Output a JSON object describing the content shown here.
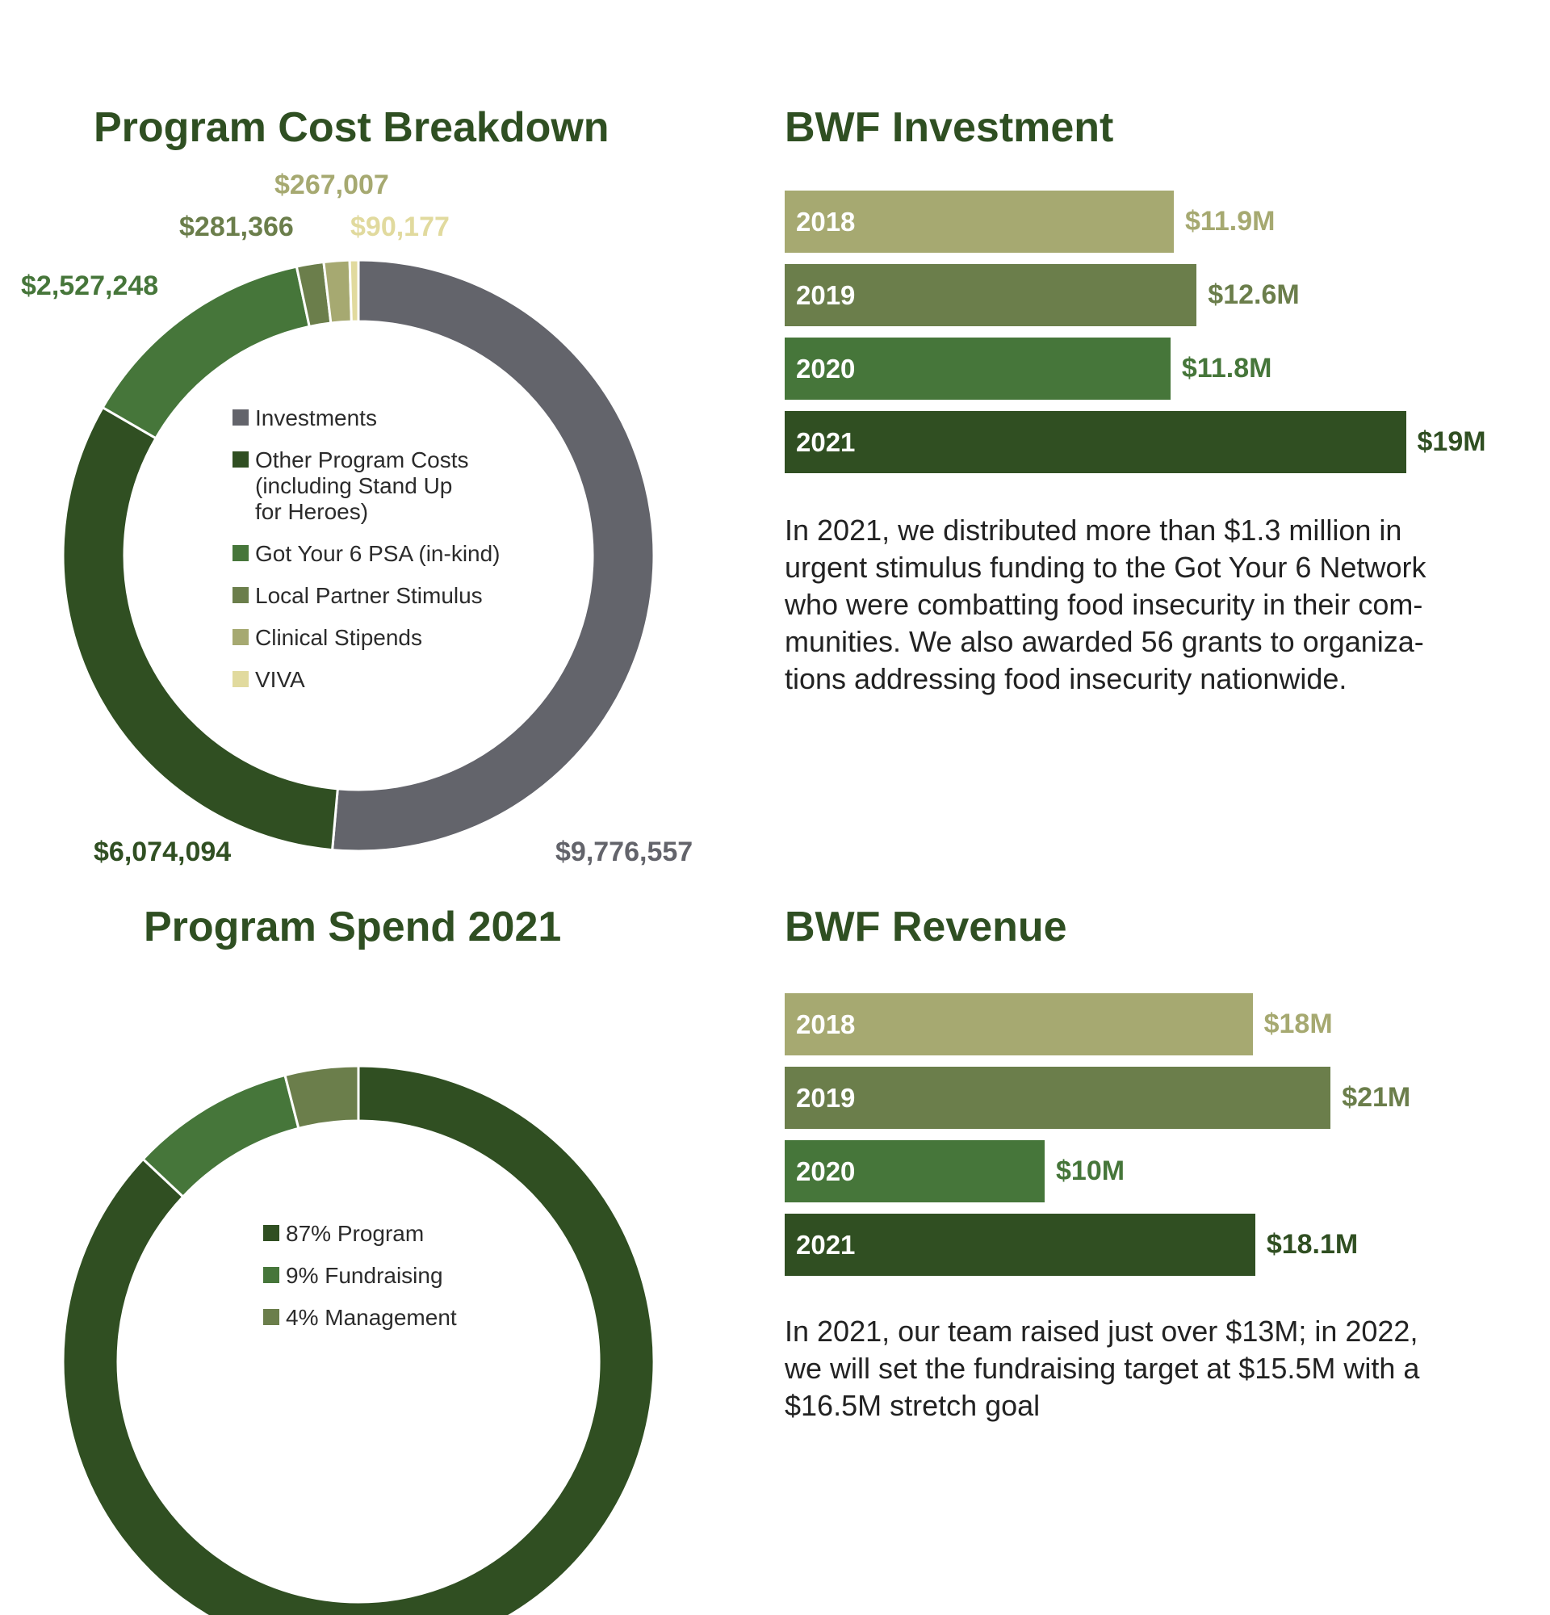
{
  "program_cost": {
    "title": "Program Cost Breakdown",
    "legend": [
      {
        "label": "Investments",
        "color": "#63646b"
      },
      {
        "label": "Other Program Costs\n(including Stand Up\nfor Heroes)",
        "color": "#304f22"
      },
      {
        "label": "Got Your 6 PSA (in-kind)",
        "color": "#46763a"
      },
      {
        "label": "Local Partner Stimulus",
        "color": "#6b7e4b"
      },
      {
        "label": "Clinical Stipends",
        "color": "#a6a971"
      },
      {
        "label": "VIVA",
        "color": "#e1da9e"
      }
    ],
    "value_labels": [
      "$9,776,557",
      "$6,074,094",
      "$2,527,248",
      "$281,366",
      "$267,007",
      "$90,177"
    ]
  },
  "program_spend": {
    "title": "Program Spend 2021",
    "legend": [
      {
        "label": "87% Program",
        "color": "#304f22"
      },
      {
        "label": "9% Fundraising",
        "color": "#46763a"
      },
      {
        "label": "4% Management",
        "color": "#6b7e4b"
      }
    ],
    "slice_labels": [
      "87%",
      "9%",
      "4%"
    ]
  },
  "investment": {
    "title": "BWF Investment",
    "paragraph": "In 2021, we distributed more than $1.3 million in urgent stimulus funding to the Got Your 6 Network who were combatting food insecurity in their com-munities. We also awarded 56 grants to organiza-tions addressing food insecurity nationwide.",
    "bars": [
      {
        "year": "2018",
        "value_label": "$11.9M",
        "color": "#a6a971"
      },
      {
        "year": "2019",
        "value_label": "$12.6M",
        "color": "#6b7e4b"
      },
      {
        "year": "2020",
        "value_label": "$11.8M",
        "color": "#46763a"
      },
      {
        "year": "2021",
        "value_label": "$19M",
        "color": "#304f22"
      }
    ]
  },
  "revenue": {
    "title": "BWF Revenue",
    "paragraph": "In 2021, our team raised just over $13M; in 2022, we will set the fundraising target at $15.5M with a $16.5M stretch goal",
    "bars": [
      {
        "year": "2018",
        "value_label": "$18M",
        "color": "#a6a971"
      },
      {
        "year": "2019",
        "value_label": "$21M",
        "color": "#6b7e4b"
      },
      {
        "year": "2020",
        "value_label": "$10M",
        "color": "#46763a"
      },
      {
        "year": "2021",
        "value_label": "$18.1M",
        "color": "#304f22"
      }
    ]
  },
  "chart_data": [
    {
      "type": "pie",
      "title": "Program Cost Breakdown",
      "categories": [
        "Investments",
        "Other Program Costs (including Stand Up for Heroes)",
        "Got Your 6 PSA (in-kind)",
        "Local Partner Stimulus",
        "Clinical Stipends",
        "VIVA"
      ],
      "values": [
        9776557,
        6074094,
        2527248,
        281366,
        267007,
        90177
      ],
      "legend": "center"
    },
    {
      "type": "pie",
      "title": "Program Spend 2021",
      "categories": [
        "Program",
        "Fundraising",
        "Management"
      ],
      "values": [
        87,
        9,
        4
      ],
      "legend": "center"
    },
    {
      "type": "bar",
      "title": "BWF Investment",
      "orientation": "horizontal",
      "categories": [
        "2018",
        "2019",
        "2020",
        "2021"
      ],
      "values": [
        11.9,
        12.6,
        11.8,
        19
      ],
      "unit": "$M"
    },
    {
      "type": "bar",
      "title": "BWF Revenue",
      "orientation": "horizontal",
      "categories": [
        "2018",
        "2019",
        "2020",
        "2021"
      ],
      "values": [
        18,
        21,
        10,
        18.1
      ],
      "unit": "$M"
    }
  ]
}
